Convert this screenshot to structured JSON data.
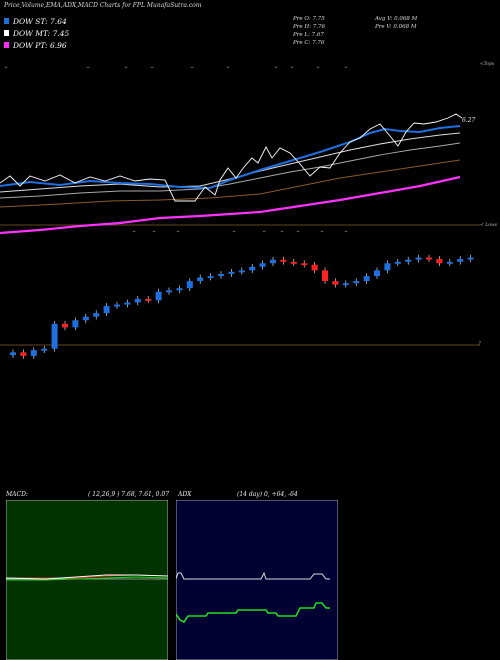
{
  "header": {
    "title": "Price,Volume,EMA,ADX,MACD Charts for FPL  MunafaSutra.com",
    "legend": [
      {
        "label": "DOW ST: 7.64",
        "color": "#1e6fe0"
      },
      {
        "label": "DOW MT: 7.45",
        "color": "#ffffff"
      },
      {
        "label": "DOW PT: 6.96",
        "color": "#ff2bff"
      }
    ],
    "stats": {
      "open": "Pre   O: 7.75",
      "high": "Pre   H: 7.76",
      "low": "Pre   L: 7.67",
      "close": "Pre   C: 7.76",
      "avg_volume": "Avg V: 0.068 M",
      "pre_volume": "Pre   V: 0.068 M"
    }
  },
  "ema_panel": {
    "top_label": "<Tops",
    "bottom_label": "< Lows",
    "price_label": "6.27",
    "colors": {
      "close": "#ffffff",
      "short": "#1e6fe0",
      "mid": "#cccccc",
      "long": "#8b5a2b",
      "pt": "#ff33ff"
    }
  },
  "candle_panel": {
    "ref_label": "7",
    "up_color": "#1e6fe0",
    "down_color": "#ff2222"
  },
  "macd": {
    "title": "MACD:",
    "params": "( 12,26,9 ) 7.68,  7.61,  0.07",
    "bg": "#003300"
  },
  "adx": {
    "title": "ADX",
    "params": "(14  day) 0,  +64,  -64",
    "bg": "#000033"
  },
  "chart_data": {
    "type": "candlestick",
    "close_series": [
      7.05,
      7.0,
      7.08,
      7.1,
      7.45,
      7.4,
      7.5,
      7.55,
      7.6,
      7.7,
      7.72,
      7.75,
      7.8,
      7.78,
      7.9,
      7.92,
      7.95,
      8.05,
      8.1,
      8.12,
      8.15,
      8.18,
      8.2,
      8.25,
      8.3,
      8.35,
      8.32,
      8.3,
      8.28,
      8.2,
      8.05,
      8.0,
      8.02,
      8.05,
      8.12,
      8.2,
      8.3,
      8.32,
      8.35,
      8.38,
      8.36,
      8.3,
      8.32,
      8.36,
      8.38
    ]
  }
}
